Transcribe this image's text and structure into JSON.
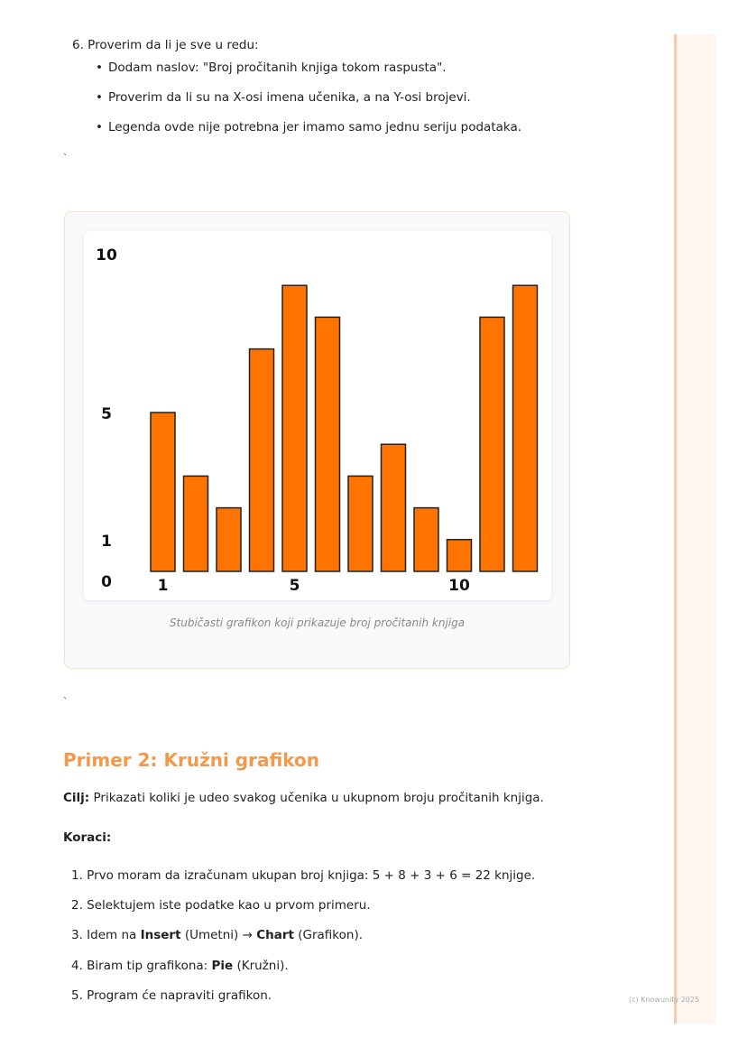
{
  "intro_list": {
    "item6": "6. Proverim da li je sve u redu:",
    "bullets": [
      "Dodam naslov: \"Broj pročitanih knjiga tokom raspusta\".",
      "Proverim da li su na X-osi imena učenika, a na Y-osi brojevi.",
      "Legenda ovde nije potrebna jer imamo samo jednu seriju podataka."
    ]
  },
  "tick_mark": "`",
  "chart_data": {
    "type": "bar",
    "categories": [
      1,
      2,
      3,
      4,
      5,
      6,
      7,
      8,
      9,
      10,
      11,
      12
    ],
    "values": [
      5,
      3,
      2,
      7,
      9,
      8,
      3,
      4,
      2,
      1,
      8,
      9
    ],
    "x_tick_labels": [
      "1",
      "5",
      "10"
    ],
    "y_tick_labels": [
      "0",
      "1",
      "5",
      "10"
    ],
    "ylim": [
      0,
      10
    ],
    "bar_color": "#ff7300",
    "caption": "Stubičasti grafikon koji prikazuje broj pročitanih knjiga"
  },
  "section2": {
    "title": "Primer 2: Kružni grafikon",
    "goal_label": "Cilj:",
    "goal_text": " Prikazati koliki je udeo svakog učenika u ukupnom broju pročitanih knjiga.",
    "steps_label": "Koraci:",
    "steps": {
      "s1": "1. Prvo moram da izračunam ukupan broj knjiga: 5 + 8 + 3 + 6 = 22 knjige.",
      "s2": "2. Selektujem iste podatke kao u prvom primeru.",
      "s3_a": "3. Idem na ",
      "s3_b": "Insert",
      "s3_c": " (Umetni) → ",
      "s3_d": "Chart",
      "s3_e": " (Grafikon).",
      "s4_a": "4. Biram tip grafikona: ",
      "s4_b": "Pie",
      "s4_c": " (Kružni).",
      "s5": "5. Program će napraviti grafikon."
    }
  },
  "footer": "(c) Knowunity 2025",
  "accent_color": "#f29a4a"
}
